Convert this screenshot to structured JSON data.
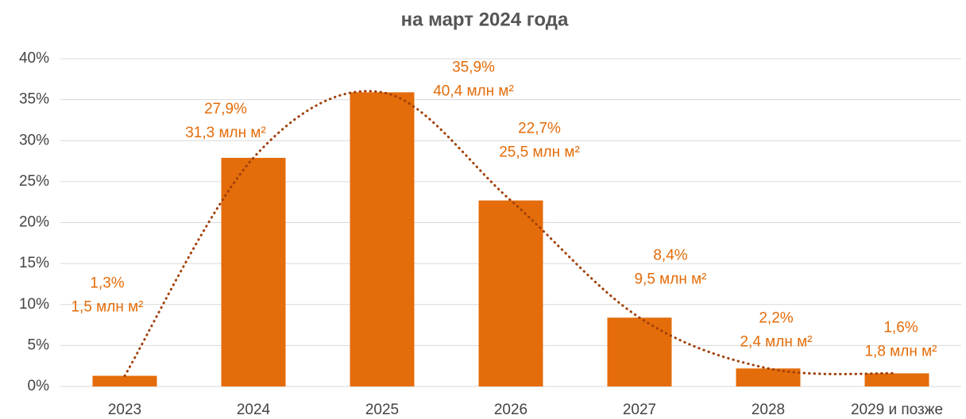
{
  "chart_data": {
    "type": "bar",
    "title": "на март 2024 года",
    "categories": [
      "2023",
      "2024",
      "2025",
      "2026",
      "2027",
      "2028",
      "2029 и позже"
    ],
    "values": [
      1.3,
      27.9,
      35.9,
      22.7,
      8.4,
      2.2,
      1.6
    ],
    "value_labels": [
      "1,3%",
      "27,9%",
      "35,9%",
      "22,7%",
      "8,4%",
      "2,2%",
      "1,6%"
    ],
    "volume_labels": [
      "1,5 млн м²",
      "31,3 млн м²",
      "40,4 млн м²",
      "25,5 млн м²",
      "9,5 млн м²",
      "2,4 млн м²",
      "1,8 млн м²"
    ],
    "color": "#e46c0a",
    "trendline_color": "#a0400a",
    "ylim": [
      0,
      40
    ],
    "yticks": [
      {
        "value": 0,
        "label": "0%"
      },
      {
        "value": 5,
        "label": "5%"
      },
      {
        "value": 10,
        "label": "10%"
      },
      {
        "value": 15,
        "label": "15%"
      },
      {
        "value": 20,
        "label": "20%"
      },
      {
        "value": 25,
        "label": "25%"
      },
      {
        "value": 30,
        "label": "30%"
      },
      {
        "value": 35,
        "label": "35%"
      },
      {
        "value": 40,
        "label": "40%"
      }
    ],
    "grid": true
  }
}
